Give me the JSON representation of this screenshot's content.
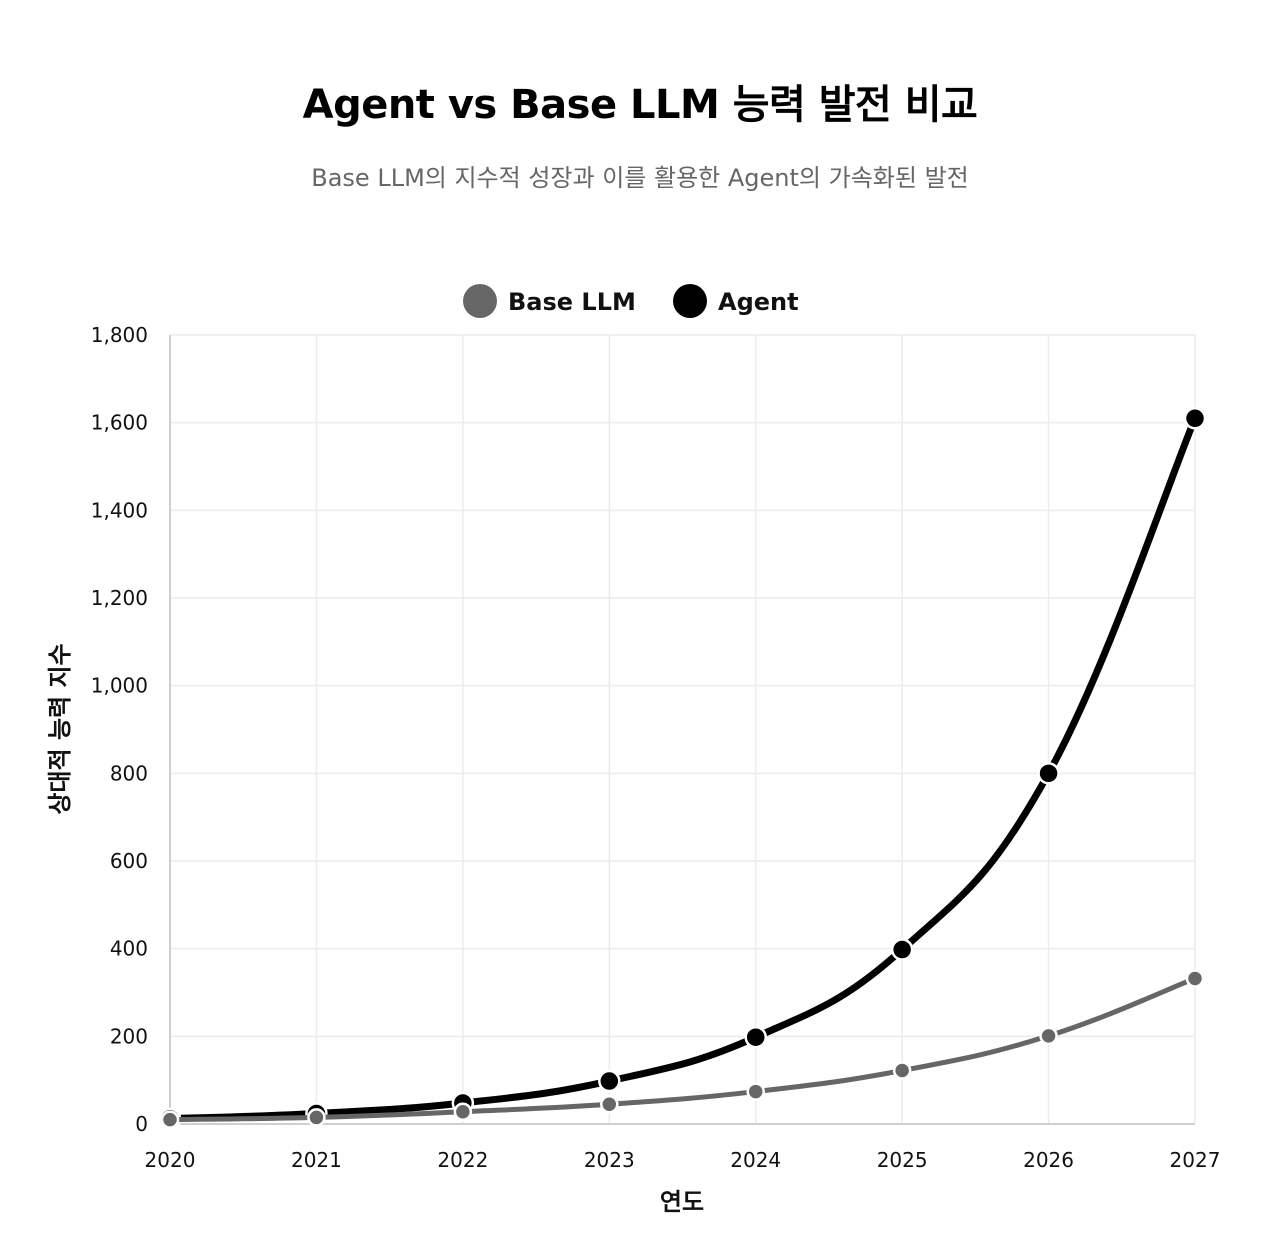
{
  "title": "Agent vs Base LLM 능력 발전 비교",
  "subtitle": "Base LLM의 지수적 성장과 이를 활용한 Agent의 가속화된 발전",
  "chart_data": {
    "type": "line",
    "title": "Agent vs Base LLM 능력 발전 비교",
    "subtitle": "Base LLM의 지수적 성장과 이를 활용한 Agent의 가속화된 발전",
    "xlabel": "연도",
    "ylabel": "상대적 능력 지수",
    "x": [
      "2020",
      "2021",
      "2022",
      "2023",
      "2024",
      "2025",
      "2026",
      "2027"
    ],
    "ylim": [
      0,
      1800
    ],
    "yticks": [
      0,
      200,
      400,
      600,
      800,
      1000,
      1200,
      1400,
      1600,
      1800
    ],
    "ytick_labels": [
      "0",
      "200",
      "400",
      "600",
      "800",
      "1,000",
      "1,200",
      "1,400",
      "1,600",
      "1,800"
    ],
    "grid": true,
    "legend_position": "top",
    "series": [
      {
        "name": "Base LLM",
        "color": "#666666",
        "values": [
          10,
          15,
          28,
          45,
          74,
          122,
          201,
          332
        ]
      },
      {
        "name": "Agent",
        "color": "#000000",
        "values": [
          12,
          24,
          48,
          98,
          198,
          398,
          800,
          1610
        ]
      }
    ]
  }
}
